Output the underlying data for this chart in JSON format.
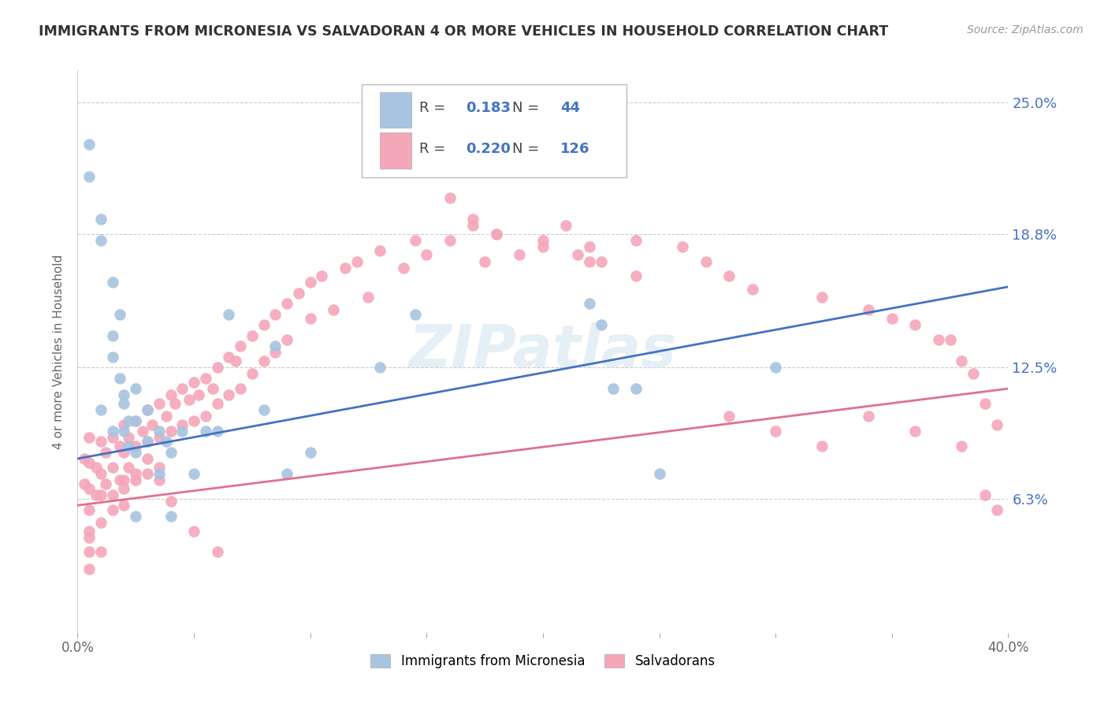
{
  "title": "IMMIGRANTS FROM MICRONESIA VS SALVADORAN 4 OR MORE VEHICLES IN HOUSEHOLD CORRELATION CHART",
  "source": "Source: ZipAtlas.com",
  "ylabel": "4 or more Vehicles in Household",
  "x_min": 0.0,
  "x_max": 0.4,
  "y_min": 0.0,
  "y_max": 0.265,
  "y_ticks": [
    0.0,
    0.063,
    0.125,
    0.188,
    0.25
  ],
  "y_tick_labels": [
    "",
    "6.3%",
    "12.5%",
    "18.8%",
    "25.0%"
  ],
  "x_ticks": [
    0.0,
    0.05,
    0.1,
    0.15,
    0.2,
    0.25,
    0.3,
    0.35,
    0.4
  ],
  "x_tick_labels": [
    "0.0%",
    "",
    "",
    "",
    "",
    "",
    "",
    "",
    "40.0%"
  ],
  "blue_color": "#a8c4e0",
  "pink_color": "#f4a7b9",
  "blue_line_color": "#4472c4",
  "pink_line_color": "#e07090",
  "legend_blue_R": "0.183",
  "legend_blue_N": "44",
  "legend_pink_R": "0.220",
  "legend_pink_N": "126",
  "watermark": "ZIPatlas",
  "blue_line_start_y": 0.082,
  "blue_line_end_y": 0.163,
  "pink_line_start_y": 0.06,
  "pink_line_end_y": 0.115,
  "blue_scatter_x": [
    0.005,
    0.005,
    0.01,
    0.01,
    0.01,
    0.015,
    0.015,
    0.015,
    0.015,
    0.018,
    0.018,
    0.02,
    0.02,
    0.02,
    0.022,
    0.022,
    0.025,
    0.025,
    0.025,
    0.03,
    0.03,
    0.035,
    0.035,
    0.038,
    0.04,
    0.045,
    0.05,
    0.055,
    0.06,
    0.065,
    0.08,
    0.085,
    0.09,
    0.1,
    0.13,
    0.145,
    0.22,
    0.225,
    0.23,
    0.24,
    0.25,
    0.3,
    0.025,
    0.04
  ],
  "blue_scatter_y": [
    0.23,
    0.215,
    0.195,
    0.185,
    0.105,
    0.165,
    0.14,
    0.13,
    0.095,
    0.15,
    0.12,
    0.112,
    0.108,
    0.095,
    0.1,
    0.088,
    0.115,
    0.1,
    0.085,
    0.105,
    0.09,
    0.095,
    0.075,
    0.09,
    0.085,
    0.095,
    0.075,
    0.095,
    0.095,
    0.15,
    0.105,
    0.135,
    0.075,
    0.085,
    0.125,
    0.15,
    0.155,
    0.145,
    0.115,
    0.115,
    0.075,
    0.125,
    0.055,
    0.055
  ],
  "pink_scatter_x": [
    0.003,
    0.003,
    0.005,
    0.005,
    0.005,
    0.005,
    0.005,
    0.005,
    0.005,
    0.008,
    0.008,
    0.01,
    0.01,
    0.01,
    0.01,
    0.012,
    0.012,
    0.015,
    0.015,
    0.015,
    0.018,
    0.018,
    0.02,
    0.02,
    0.02,
    0.02,
    0.022,
    0.022,
    0.025,
    0.025,
    0.025,
    0.028,
    0.03,
    0.03,
    0.03,
    0.032,
    0.035,
    0.035,
    0.035,
    0.038,
    0.04,
    0.04,
    0.042,
    0.045,
    0.045,
    0.048,
    0.05,
    0.05,
    0.052,
    0.055,
    0.055,
    0.058,
    0.06,
    0.06,
    0.065,
    0.065,
    0.068,
    0.07,
    0.07,
    0.075,
    0.075,
    0.08,
    0.08,
    0.085,
    0.085,
    0.09,
    0.09,
    0.095,
    0.1,
    0.1,
    0.105,
    0.11,
    0.115,
    0.12,
    0.125,
    0.13,
    0.14,
    0.145,
    0.15,
    0.16,
    0.17,
    0.175,
    0.18,
    0.19,
    0.2,
    0.21,
    0.215,
    0.22,
    0.225,
    0.24,
    0.26,
    0.27,
    0.28,
    0.29,
    0.32,
    0.34,
    0.35,
    0.36,
    0.37,
    0.375,
    0.38,
    0.385,
    0.39,
    0.395,
    0.16,
    0.17,
    0.18,
    0.2,
    0.22,
    0.24,
    0.28,
    0.3,
    0.32,
    0.34,
    0.36,
    0.38,
    0.39,
    0.395,
    0.005,
    0.01,
    0.015,
    0.02,
    0.025,
    0.03,
    0.035,
    0.04,
    0.05,
    0.06
  ],
  "pink_scatter_y": [
    0.082,
    0.07,
    0.092,
    0.08,
    0.068,
    0.058,
    0.048,
    0.038,
    0.03,
    0.078,
    0.065,
    0.09,
    0.075,
    0.065,
    0.052,
    0.085,
    0.07,
    0.092,
    0.078,
    0.065,
    0.088,
    0.072,
    0.098,
    0.085,
    0.072,
    0.06,
    0.092,
    0.078,
    0.1,
    0.088,
    0.072,
    0.095,
    0.105,
    0.09,
    0.075,
    0.098,
    0.108,
    0.092,
    0.078,
    0.102,
    0.112,
    0.095,
    0.108,
    0.115,
    0.098,
    0.11,
    0.118,
    0.1,
    0.112,
    0.12,
    0.102,
    0.115,
    0.125,
    0.108,
    0.13,
    0.112,
    0.128,
    0.135,
    0.115,
    0.14,
    0.122,
    0.145,
    0.128,
    0.15,
    0.132,
    0.155,
    0.138,
    0.16,
    0.165,
    0.148,
    0.168,
    0.152,
    0.172,
    0.175,
    0.158,
    0.18,
    0.172,
    0.185,
    0.178,
    0.185,
    0.192,
    0.175,
    0.188,
    0.178,
    0.185,
    0.192,
    0.178,
    0.182,
    0.175,
    0.185,
    0.182,
    0.175,
    0.168,
    0.162,
    0.158,
    0.152,
    0.148,
    0.145,
    0.138,
    0.138,
    0.128,
    0.122,
    0.108,
    0.098,
    0.205,
    0.195,
    0.188,
    0.182,
    0.175,
    0.168,
    0.102,
    0.095,
    0.088,
    0.102,
    0.095,
    0.088,
    0.065,
    0.058,
    0.045,
    0.038,
    0.058,
    0.068,
    0.075,
    0.082,
    0.072,
    0.062,
    0.048,
    0.038
  ]
}
